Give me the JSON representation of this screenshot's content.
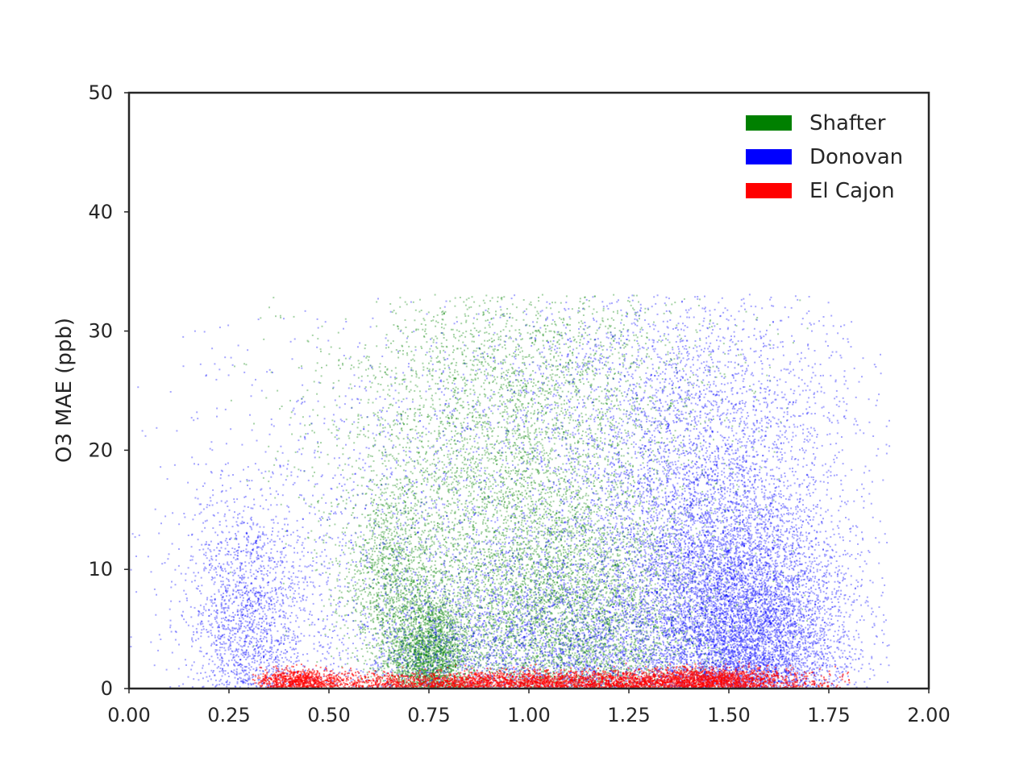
{
  "chart_data": {
    "type": "scatter",
    "title": "",
    "xlabel": "",
    "ylabel": "O3 MAE (ppb)",
    "xlim": [
      0,
      2.0
    ],
    "ylim": [
      0,
      50
    ],
    "x_ticks": [
      "0.00",
      "0.25",
      "0.50",
      "0.75",
      "1.00",
      "1.25",
      "1.50",
      "1.75",
      "2.00"
    ],
    "y_ticks": [
      "0",
      "10",
      "20",
      "30",
      "40",
      "50"
    ],
    "grid": false,
    "legend_position": "top-right",
    "series": [
      {
        "name": "Shafter",
        "color": "#008000",
        "x_range": [
          0.25,
          1.85
        ],
        "y_range": [
          0,
          33
        ],
        "clusters": [
          {
            "x": 0.75,
            "y": 3,
            "sx": 0.05,
            "sy": 2.5,
            "n": 2200
          },
          {
            "x": 0.65,
            "y": 9,
            "sx": 0.06,
            "sy": 4,
            "n": 1200
          },
          {
            "x": 1.1,
            "y": 6,
            "sx": 0.18,
            "sy": 5,
            "n": 4200
          },
          {
            "x": 0.95,
            "y": 17,
            "sx": 0.22,
            "sy": 7,
            "n": 3500
          },
          {
            "x": 1.0,
            "y": 27,
            "sx": 0.25,
            "sy": 4,
            "n": 1200
          }
        ]
      },
      {
        "name": "Donovan",
        "color": "#0000ff",
        "x_range": [
          0.0,
          1.9
        ],
        "y_range": [
          0,
          33
        ],
        "clusters": [
          {
            "x": 0.3,
            "y": 6,
            "sx": 0.08,
            "sy": 5,
            "n": 1600
          },
          {
            "x": 1.55,
            "y": 5,
            "sx": 0.12,
            "sy": 4.5,
            "n": 4500
          },
          {
            "x": 1.45,
            "y": 13,
            "sx": 0.15,
            "sy": 6,
            "n": 3500
          },
          {
            "x": 1.1,
            "y": 4,
            "sx": 0.3,
            "sy": 4,
            "n": 3500
          },
          {
            "x": 1.35,
            "y": 25,
            "sx": 0.25,
            "sy": 5,
            "n": 1500
          },
          {
            "x": 0.95,
            "y": 15,
            "sx": 0.45,
            "sy": 9,
            "n": 2500
          }
        ]
      },
      {
        "name": "El Cajon",
        "color": "#ff0000",
        "x_range": [
          0.3,
          1.8
        ],
        "y_range": [
          0,
          2.5
        ],
        "clusters": [
          {
            "x": 0.42,
            "y": 0.6,
            "sx": 0.05,
            "sy": 0.5,
            "n": 600
          },
          {
            "x": 1.05,
            "y": 0.5,
            "sx": 0.35,
            "sy": 0.45,
            "n": 3200
          },
          {
            "x": 1.45,
            "y": 0.7,
            "sx": 0.1,
            "sy": 0.5,
            "n": 1000
          }
        ]
      }
    ]
  }
}
